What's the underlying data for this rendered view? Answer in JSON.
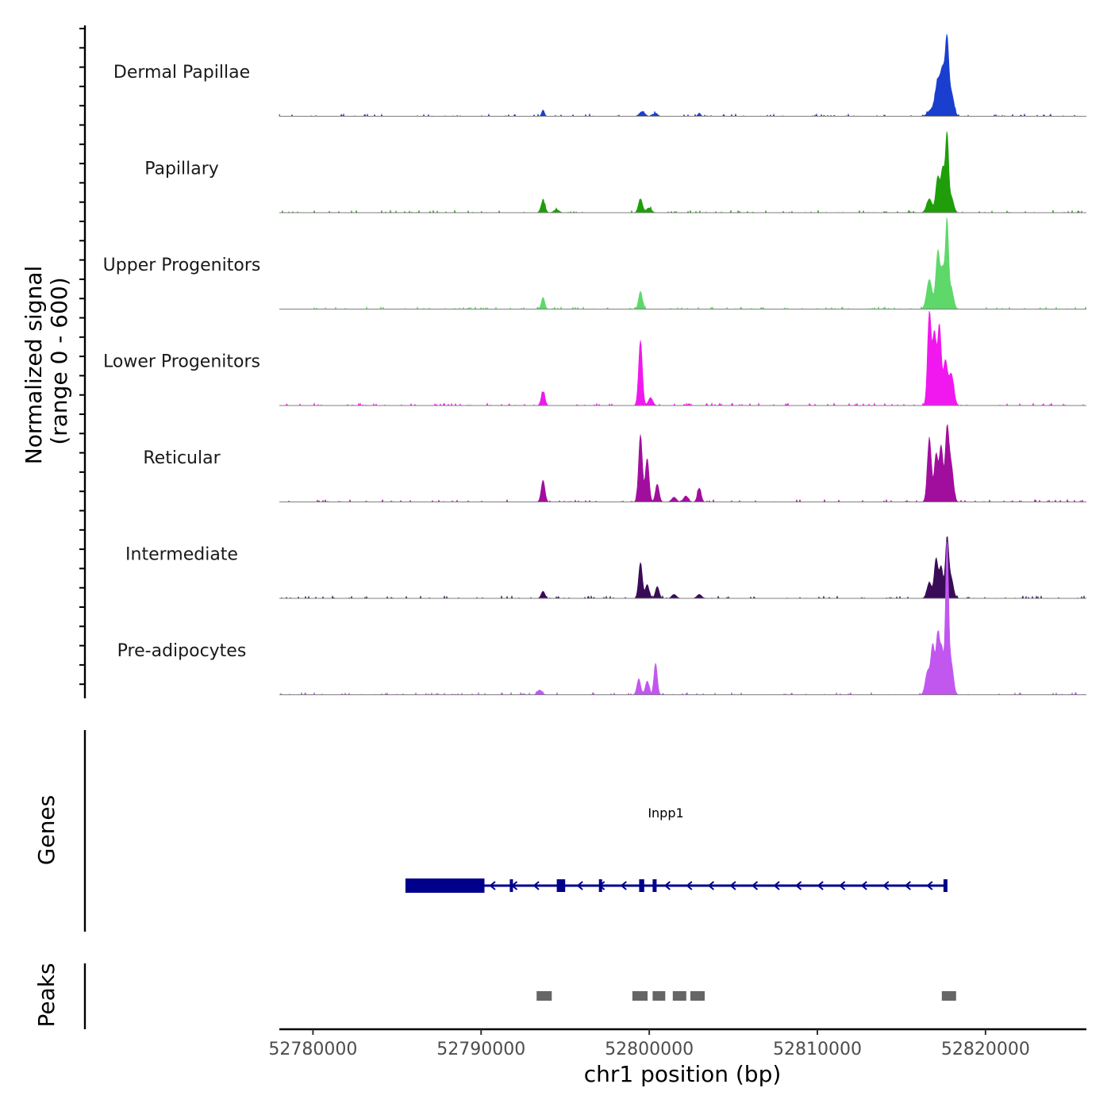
{
  "chart_data": {
    "type": "coverage",
    "x_range": [
      52778000,
      52826000
    ],
    "x_ticks": [
      52780000,
      52790000,
      52800000,
      52810000,
      52820000
    ],
    "tick_labels": [
      "52780000",
      "52790000",
      "52800000",
      "52810000",
      "52820000"
    ],
    "xlabel": "chr1 position (bp)",
    "ylabel_line1": "Normalized signal",
    "ylabel_line2": "(range 0 - 600)",
    "y_range": [
      0,
      600
    ],
    "tracks": [
      {
        "name": "Dermal Papillae",
        "color": "#1A3FCF",
        "peaks": [
          [
            52793700,
            16,
            80
          ],
          [
            52799600,
            12,
            160
          ],
          [
            52800400,
            8,
            120
          ],
          [
            52803000,
            8,
            80
          ],
          [
            52816800,
            16,
            200
          ],
          [
            52817200,
            85,
            150
          ],
          [
            52817500,
            110,
            130
          ],
          [
            52817750,
            175,
            100
          ],
          [
            52818000,
            60,
            150
          ]
        ]
      },
      {
        "name": "Papillary",
        "color": "#1F9E0A",
        "peaks": [
          [
            52793700,
            30,
            120
          ],
          [
            52794500,
            8,
            150
          ],
          [
            52799500,
            35,
            120
          ],
          [
            52800000,
            12,
            150
          ],
          [
            52816700,
            35,
            160
          ],
          [
            52817200,
            90,
            120
          ],
          [
            52817500,
            110,
            110
          ],
          [
            52817750,
            190,
            90
          ],
          [
            52818000,
            40,
            140
          ]
        ]
      },
      {
        "name": "Upper Progenitors",
        "color": "#5ED86A",
        "peaks": [
          [
            52793700,
            30,
            100
          ],
          [
            52799500,
            45,
            110
          ],
          [
            52816700,
            75,
            160
          ],
          [
            52817200,
            140,
            120
          ],
          [
            52817500,
            100,
            120
          ],
          [
            52817750,
            210,
            90
          ],
          [
            52818000,
            50,
            140
          ]
        ]
      },
      {
        "name": "Lower Progenitors",
        "color": "#F018EE",
        "peaks": [
          [
            52793700,
            35,
            110
          ],
          [
            52799500,
            165,
            110
          ],
          [
            52800100,
            20,
            130
          ],
          [
            52816700,
            235,
            110
          ],
          [
            52817000,
            180,
            110
          ],
          [
            52817300,
            200,
            110
          ],
          [
            52817650,
            110,
            120
          ],
          [
            52818000,
            80,
            150
          ]
        ]
      },
      {
        "name": "Reticular",
        "color": "#A10E9E",
        "peaks": [
          [
            52793700,
            55,
            110
          ],
          [
            52799500,
            170,
            110
          ],
          [
            52799900,
            110,
            110
          ],
          [
            52800500,
            45,
            110
          ],
          [
            52801500,
            12,
            140
          ],
          [
            52802200,
            15,
            140
          ],
          [
            52803000,
            35,
            110
          ],
          [
            52816700,
            160,
            120
          ],
          [
            52817100,
            120,
            110
          ],
          [
            52817400,
            140,
            110
          ],
          [
            52817750,
            180,
            110
          ],
          [
            52818000,
            90,
            130
          ]
        ]
      },
      {
        "name": "Intermediate",
        "color": "#3A0B57",
        "peaks": [
          [
            52793700,
            18,
            110
          ],
          [
            52799500,
            90,
            110
          ],
          [
            52799900,
            35,
            110
          ],
          [
            52800500,
            30,
            110
          ],
          [
            52801500,
            10,
            140
          ],
          [
            52803000,
            10,
            140
          ],
          [
            52816700,
            40,
            140
          ],
          [
            52817100,
            100,
            110
          ],
          [
            52817400,
            80,
            110
          ],
          [
            52817750,
            150,
            100
          ],
          [
            52818000,
            50,
            130
          ]
        ]
      },
      {
        "name": "Pre-adipocytes",
        "color": "#C257F0",
        "peaks": [
          [
            52793500,
            12,
            140
          ],
          [
            52799400,
            40,
            110
          ],
          [
            52799900,
            35,
            110
          ],
          [
            52800400,
            80,
            100
          ],
          [
            52816600,
            60,
            140
          ],
          [
            52816900,
            120,
            110
          ],
          [
            52817200,
            150,
            110
          ],
          [
            52817450,
            110,
            110
          ],
          [
            52817750,
            380,
            90
          ],
          [
            52818000,
            80,
            130
          ]
        ]
      }
    ],
    "gene": {
      "name": "Inpp1",
      "color": "#00008B",
      "strand": "-",
      "start": 52785500,
      "end": 52817700,
      "exons": [
        [
          52785500,
          52790200
        ],
        [
          52794500,
          52795000
        ],
        [
          52799400,
          52799700
        ],
        [
          52800200,
          52800400
        ],
        [
          52817500,
          52817700
        ]
      ],
      "thin_exons": [
        52791800,
        52797100
      ]
    },
    "peaks_track": {
      "title": "Peaks",
      "color": "#666666",
      "regions": [
        [
          52793300,
          52794200
        ],
        [
          52799000,
          52799900
        ],
        [
          52800200,
          52800950
        ],
        [
          52801400,
          52802200
        ],
        [
          52802450,
          52803300
        ],
        [
          52817400,
          52818250
        ]
      ]
    },
    "genes_track_title": "Genes"
  }
}
